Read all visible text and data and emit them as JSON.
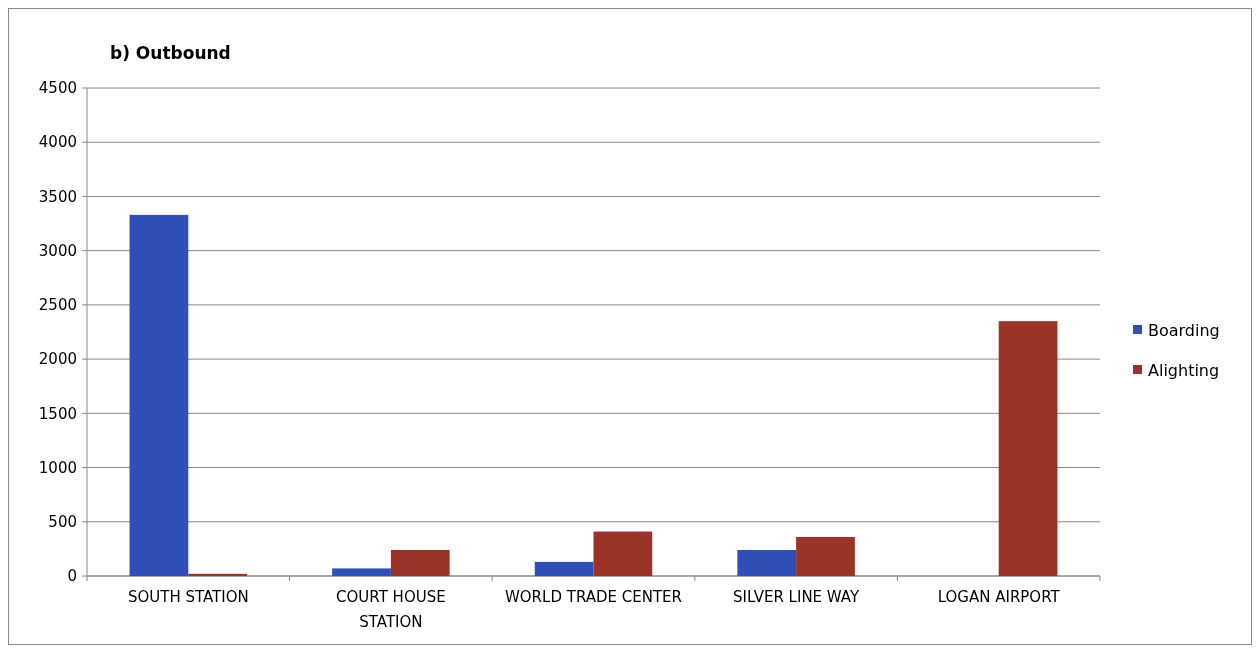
{
  "chart_data": {
    "type": "bar",
    "title": "b) Outbound",
    "categories": [
      "SOUTH STATION",
      "COURT HOUSE STATION",
      "WORLD TRADE CENTER",
      "SILVER LINE WAY",
      "LOGAN AIRPORT"
    ],
    "series": [
      {
        "name": "Boarding",
        "color": "#3050b8",
        "values": [
          3330,
          70,
          130,
          240,
          0
        ]
      },
      {
        "name": "Alighting",
        "color": "#9a3328",
        "values": [
          20,
          240,
          410,
          360,
          2350
        ]
      }
    ],
    "ylim": [
      0,
      4500
    ],
    "yticks": [
      0,
      500,
      1000,
      1500,
      2000,
      2500,
      3000,
      3500,
      4000,
      4500
    ],
    "grid": "y",
    "legend": "right"
  }
}
